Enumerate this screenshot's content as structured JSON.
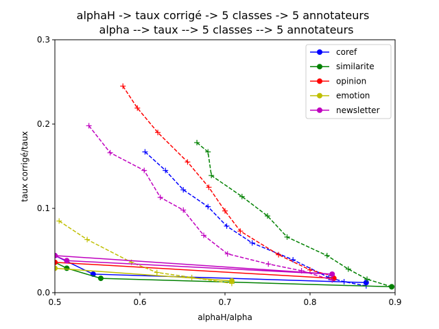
{
  "chart_data": {
    "type": "line",
    "title_line1": "alphaH -> taux corrigé -> 5 classes -> 5 annotateurs",
    "title_line2": "alpha --> taux --> 5 classes --> 5 annotateurs",
    "xlabel": "alphaH/alpha",
    "ylabel": "taux corrigé/taux",
    "xlim": [
      0.5,
      0.9
    ],
    "ylim": [
      0,
      0.3
    ],
    "xticks": [
      "0.5",
      "0.6",
      "0.7",
      "0.8",
      "0.9"
    ],
    "yticks": [
      "0.0",
      "0.1",
      "0.2",
      "0.3"
    ],
    "xtick_values": [
      0.5,
      0.6,
      0.7,
      0.8,
      0.9
    ],
    "ytick_values": [
      0,
      0.1,
      0.2,
      0.3
    ],
    "grid": false,
    "legend_position": "top-right",
    "series": [
      {
        "name": "coref",
        "color": "#0000ff",
        "solid": [
          [
            0.5,
            0.044
          ],
          [
            0.545,
            0.022
          ],
          [
            0.866,
            0.012
          ]
        ],
        "dashed": [
          [
            0.606,
            0.167
          ],
          [
            0.63,
            0.145
          ],
          [
            0.651,
            0.122
          ],
          [
            0.68,
            0.102
          ],
          [
            0.702,
            0.079
          ],
          [
            0.732,
            0.059
          ],
          [
            0.78,
            0.039
          ],
          [
            0.822,
            0.018
          ],
          [
            0.84,
            0.013
          ],
          [
            0.866,
            0.008
          ]
        ]
      },
      {
        "name": "similarite",
        "color": "#008000",
        "solid": [
          [
            0.5,
            0.036
          ],
          [
            0.514,
            0.029
          ],
          [
            0.554,
            0.017
          ],
          [
            0.896,
            0.007
          ]
        ],
        "dashed": [
          [
            0.667,
            0.178
          ],
          [
            0.68,
            0.167
          ],
          [
            0.684,
            0.139
          ],
          [
            0.72,
            0.114
          ],
          [
            0.75,
            0.091
          ],
          [
            0.773,
            0.066
          ],
          [
            0.82,
            0.044
          ],
          [
            0.845,
            0.028
          ],
          [
            0.867,
            0.016
          ],
          [
            0.896,
            0.007
          ]
        ]
      },
      {
        "name": "opinion",
        "color": "#ff0000",
        "solid": [
          [
            0.5,
            0.036
          ],
          [
            0.828,
            0.017
          ]
        ],
        "dashed": [
          [
            0.58,
            0.245
          ],
          [
            0.597,
            0.219
          ],
          [
            0.621,
            0.19
          ],
          [
            0.656,
            0.155
          ],
          [
            0.681,
            0.125
          ],
          [
            0.7,
            0.097
          ],
          [
            0.718,
            0.073
          ],
          [
            0.763,
            0.045
          ],
          [
            0.8,
            0.027
          ],
          [
            0.826,
            0.02
          ]
        ]
      },
      {
        "name": "emotion",
        "color": "#bfbf00",
        "solid": [
          [
            0.5,
            0.029
          ],
          [
            0.708,
            0.014
          ]
        ],
        "dashed": [
          [
            0.505,
            0.085
          ],
          [
            0.538,
            0.063
          ],
          [
            0.59,
            0.036
          ],
          [
            0.62,
            0.024
          ],
          [
            0.661,
            0.018
          ],
          [
            0.708,
            0.011
          ]
        ]
      },
      {
        "name": "newsletter",
        "color": "#bf00bf",
        "solid": [
          [
            0.5,
            0.044
          ],
          [
            0.514,
            0.038
          ],
          [
            0.826,
            0.022
          ],
          [
            0.5,
            0.044
          ]
        ],
        "dashed": [
          [
            0.54,
            0.198
          ],
          [
            0.565,
            0.166
          ],
          [
            0.605,
            0.145
          ],
          [
            0.624,
            0.113
          ],
          [
            0.651,
            0.098
          ],
          [
            0.675,
            0.068
          ],
          [
            0.703,
            0.046
          ],
          [
            0.751,
            0.034
          ],
          [
            0.79,
            0.026
          ],
          [
            0.826,
            0.015
          ]
        ]
      }
    ]
  }
}
